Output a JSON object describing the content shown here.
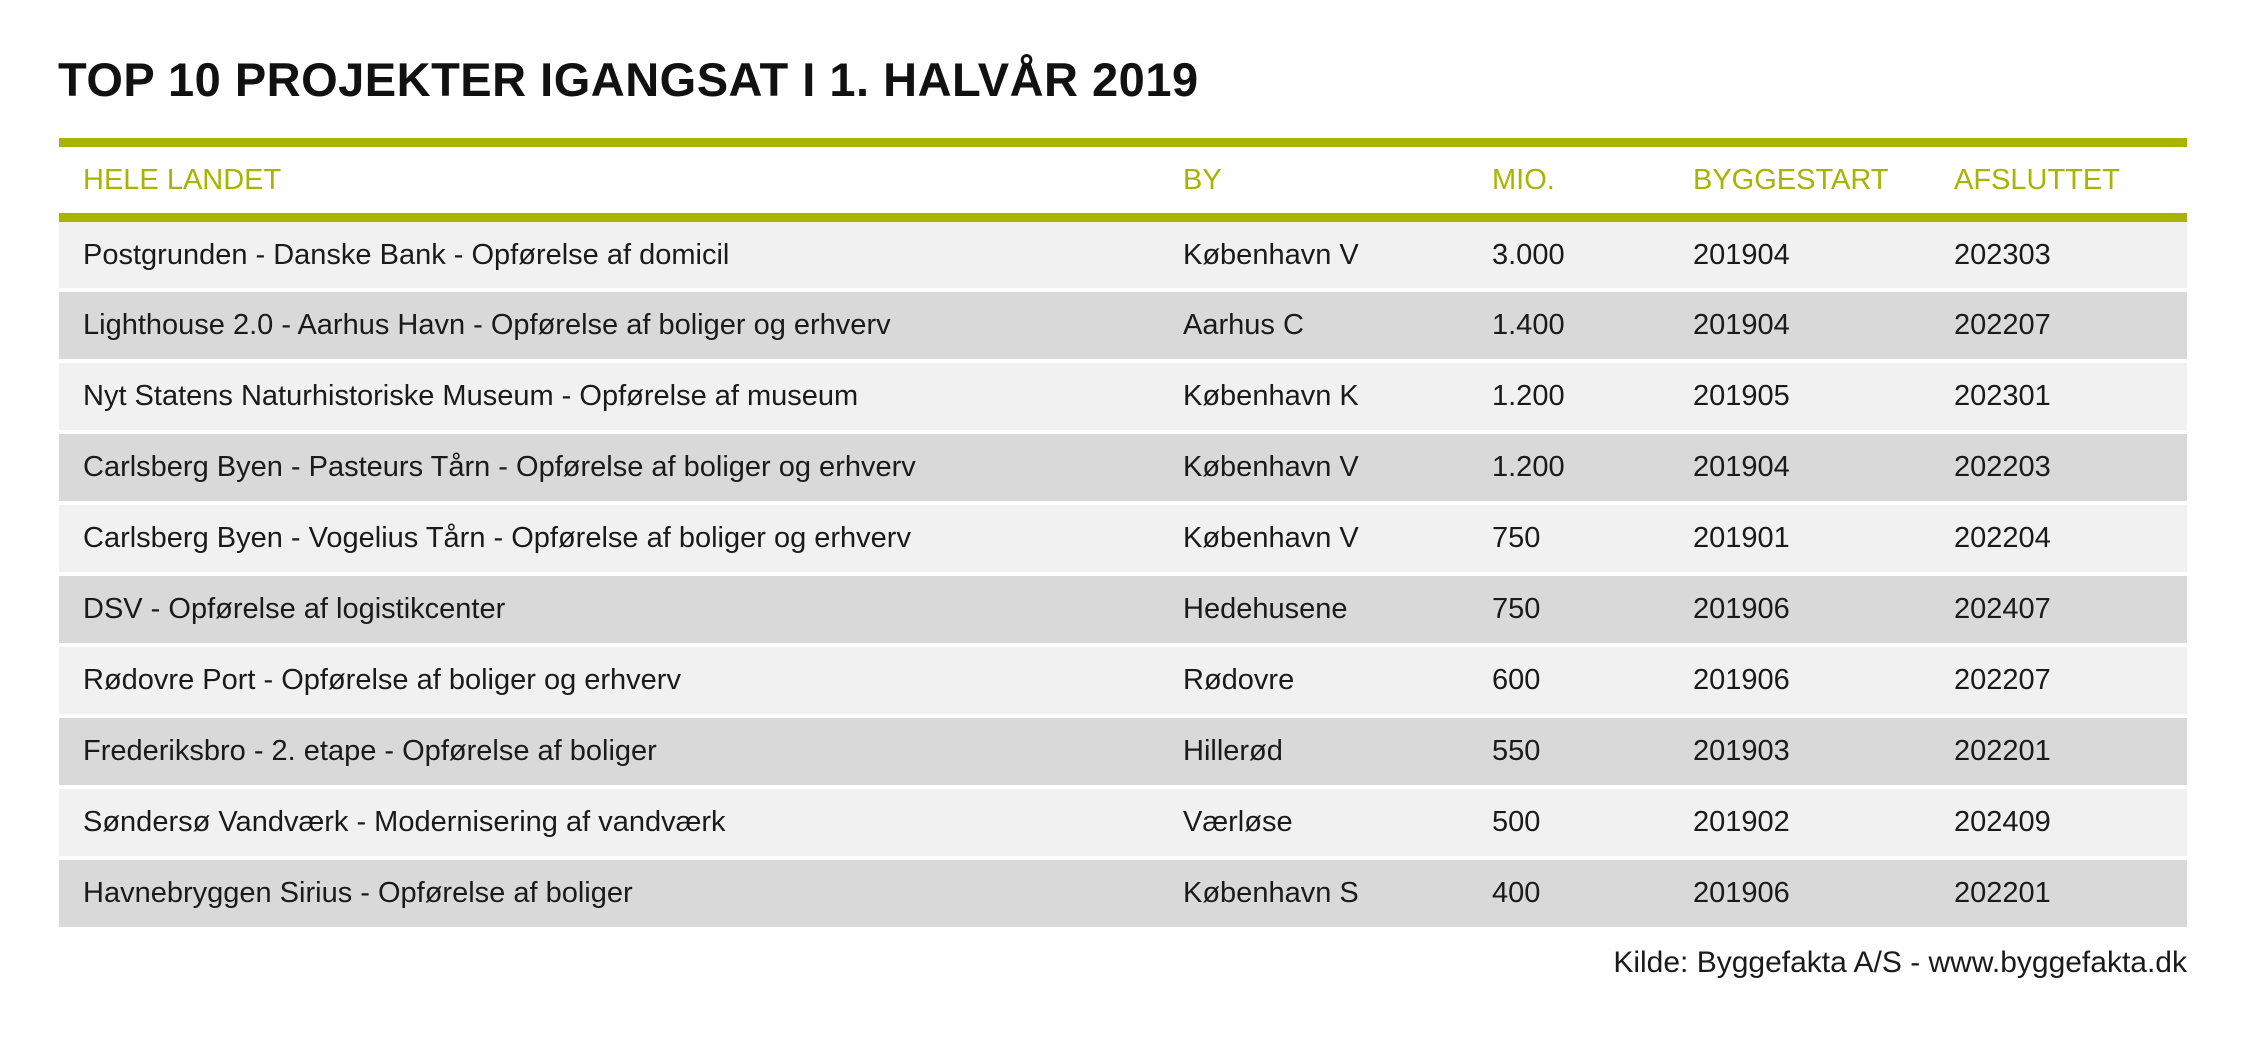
{
  "title": "TOP 10 PROJEKTER IGANGSAT I 1. HALVÅR 2019",
  "colors": {
    "accent": "#a8b400",
    "row_light": "#f1f1f1",
    "row_dark": "#d9d9d9"
  },
  "table": {
    "headers": [
      "HELE LANDET",
      "BY",
      "MIO.",
      "BYGGESTART",
      "AFSLUTTET"
    ],
    "rows": [
      [
        "Postgrunden - Danske Bank - Opførelse af domicil",
        "København V",
        "3.000",
        "201904",
        "202303"
      ],
      [
        "Lighthouse 2.0 -  Aarhus Havn - Opførelse af boliger og erhverv",
        "Aarhus C",
        "1.400",
        "201904",
        "202207"
      ],
      [
        "Nyt Statens Naturhistoriske Museum - Opførelse af museum",
        "København K",
        "1.200",
        "201905",
        "202301"
      ],
      [
        "Carlsberg Byen - Pasteurs Tårn - Opførelse af boliger og erhverv",
        "København V",
        "1.200",
        "201904",
        "202203"
      ],
      [
        "Carlsberg Byen - Vogelius Tårn - Opførelse af boliger og erhverv",
        "København V",
        "750",
        "201901",
        "202204"
      ],
      [
        "DSV - Opførelse af logistikcenter",
        "Hedehusene",
        "750",
        "201906",
        "202407"
      ],
      [
        "Rødovre Port - Opførelse af boliger og erhverv",
        "Rødovre",
        "600",
        "201906",
        "202207"
      ],
      [
        "Frederiksbro - 2. etape - Opførelse af boliger",
        "Hillerød",
        "550",
        "201903",
        "202201"
      ],
      [
        "Søndersø Vandværk - Modernisering af vandværk",
        "Værløse",
        "500",
        "201902",
        "202409"
      ],
      [
        "Havnebryggen Sirius - Opførelse af boliger",
        "København S",
        "400",
        "201906",
        "202201"
      ]
    ]
  },
  "source": "Kilde: Byggefakta A/S - www.byggefakta.dk"
}
